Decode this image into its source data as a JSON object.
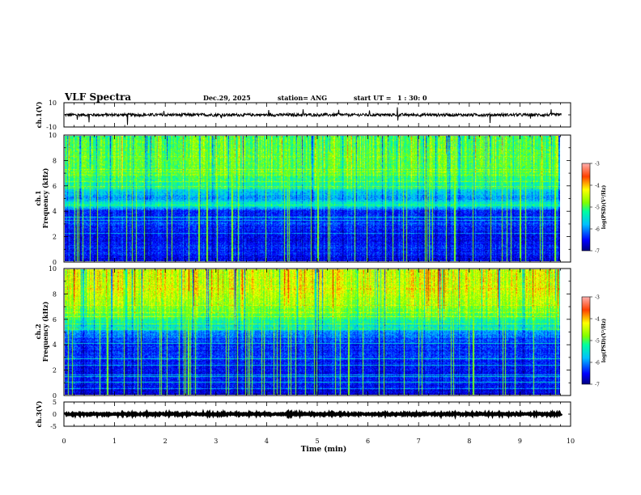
{
  "header": {
    "title": "VLF Spectra",
    "date": "Dec.29, 2025",
    "station": "station= ANG",
    "start_label": "start  UT =",
    "start_time": "1 : 30: 0"
  },
  "colors": {
    "colormap": [
      "#000080",
      "#0000ff",
      "#0080ff",
      "#00ffff",
      "#00ff80",
      "#80ff00",
      "#ffff00",
      "#ff8000",
      "#ff0000",
      "#800000"
    ],
    "trace": "#000000"
  },
  "chart_data": [
    {
      "type": "line",
      "name": "ch1-waveform",
      "ylabel": "ch.1(V)",
      "ylim": [
        -10,
        10
      ],
      "yticks": [
        "10",
        "-10"
      ],
      "xlim": [
        0,
        10
      ],
      "baseline": 0,
      "noise_amplitude": 1.2
    },
    {
      "type": "heatmap",
      "name": "ch1-spectrogram",
      "ylabel_top": "ch.1",
      "ylabel": "Frequency (kHz)",
      "ylim": [
        0,
        10
      ],
      "yticks": [
        "0",
        "2",
        "4",
        "6",
        "8",
        "10"
      ],
      "xlim": [
        0,
        10
      ],
      "data_xmax": 9.82,
      "colorbar": {
        "ticks": [
          "-3",
          "-4",
          "-5",
          "-6",
          "-7"
        ],
        "label": "log(PSD)(V²/Hz)",
        "range": [
          -7,
          -3
        ]
      },
      "log_psd_profile": {
        "freq_khz": [
          0,
          1,
          2,
          3,
          4,
          4.5,
          5,
          6,
          7,
          8,
          10
        ],
        "level": [
          -6.6,
          -6.4,
          -6.6,
          -6.3,
          -6.5,
          -5.2,
          -6.0,
          -5.3,
          -5.0,
          -4.9,
          -5.0
        ]
      }
    },
    {
      "type": "heatmap",
      "name": "ch2-spectrogram",
      "ylabel_top": "ch.2",
      "ylabel": "Frequency (kHz)",
      "ylim": [
        0,
        10
      ],
      "yticks": [
        "0",
        "2",
        "4",
        "6",
        "8",
        "10"
      ],
      "xlim": [
        0,
        10
      ],
      "data_xmax": 9.82,
      "colorbar": {
        "ticks": [
          "-3",
          "-4",
          "-5",
          "-6",
          "-7"
        ],
        "label": "log(PSD)(V²/Hz)",
        "range": [
          -7,
          -3
        ]
      },
      "log_psd_profile": {
        "freq_khz": [
          0,
          1,
          2,
          3,
          4,
          5,
          6,
          7,
          8,
          10
        ],
        "level": [
          -6.7,
          -6.4,
          -6.6,
          -6.3,
          -6.4,
          -6.0,
          -5.1,
          -4.7,
          -4.4,
          -4.4
        ]
      }
    },
    {
      "type": "line",
      "name": "ch3-waveform",
      "ylabel": "ch.3(V)",
      "ylim": [
        -5,
        5
      ],
      "yticks": [
        "5",
        "0",
        "-5"
      ],
      "xlim": [
        0,
        10
      ],
      "baseline": 0,
      "noise_amplitude": 0.3
    }
  ],
  "xaxis": {
    "label": "Time  (min)",
    "ticks": [
      "0",
      "1",
      "2",
      "3",
      "4",
      "5",
      "6",
      "7",
      "8",
      "9",
      "10"
    ]
  }
}
